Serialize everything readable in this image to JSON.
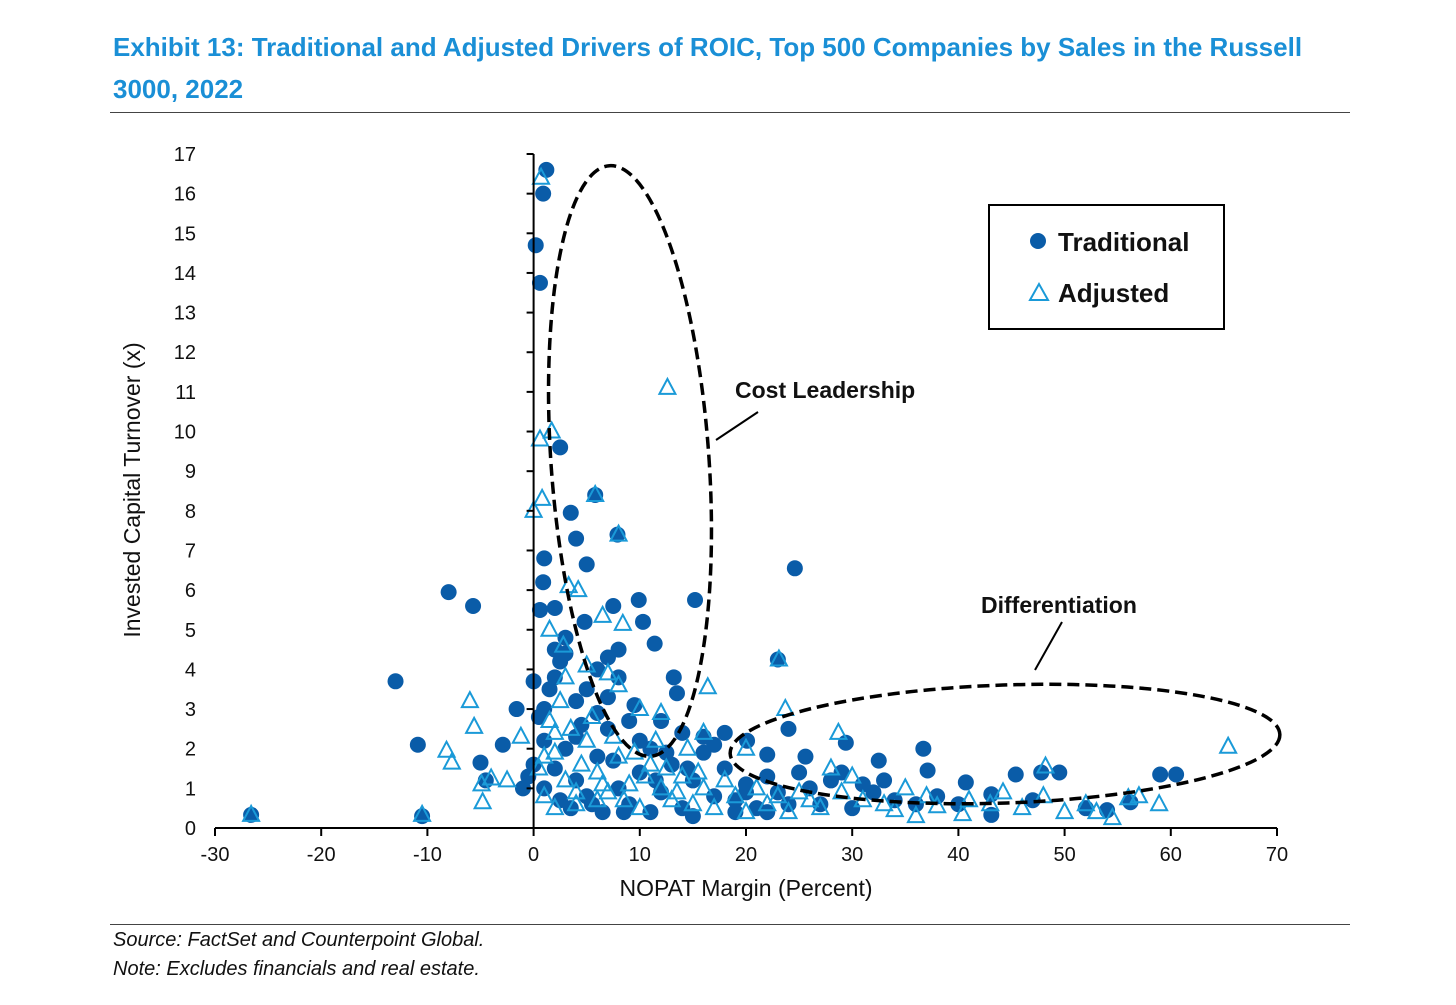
{
  "header": {
    "title": "Exhibit 13: Traditional and Adjusted Drivers of ROIC, Top 500 Companies by Sales in the Russell 3000, 2022"
  },
  "footer": {
    "source": "Source: FactSet and Counterpoint Global.",
    "note": "Note: Excludes financials and real estate."
  },
  "colors": {
    "title": "#1a8fd6",
    "traditional": "#0a5ca8",
    "adjusted": "#1a9ad8"
  },
  "chart_data": {
    "type": "scatter",
    "title": "Exhibit 13: Traditional and Adjusted Drivers of ROIC, Top 500 Companies by Sales in the Russell 3000, 2022",
    "xlabel": "NOPAT Margin (Percent)",
    "ylabel": "Invested Capital Turnover (x)",
    "xlim": [
      -30,
      70
    ],
    "ylim": [
      0,
      17
    ],
    "xticks": [
      -30,
      -20,
      -10,
      0,
      10,
      20,
      30,
      40,
      50,
      60,
      70
    ],
    "yticks": [
      0,
      1,
      2,
      3,
      4,
      5,
      6,
      7,
      8,
      9,
      10,
      11,
      12,
      13,
      14,
      15,
      16,
      17
    ],
    "grid": false,
    "legend": {
      "placement": "top-right",
      "entries": [
        "Traditional",
        "Adjusted"
      ]
    },
    "annotations": [
      "Cost Leadership",
      "Differentiation"
    ],
    "series": [
      {
        "name": "Traditional",
        "marker": "circle",
        "points": [
          [
            -26.6,
            0.33
          ],
          [
            -13.0,
            3.7
          ],
          [
            -10.9,
            2.1
          ],
          [
            -10.5,
            0.3
          ],
          [
            -8.0,
            5.95
          ],
          [
            -5.7,
            5.6
          ],
          [
            1.2,
            16.6
          ],
          [
            0.9,
            16.0
          ],
          [
            0.2,
            14.7
          ],
          [
            0.6,
            13.75
          ],
          [
            2.5,
            9.6
          ],
          [
            5.8,
            8.4
          ],
          [
            3.5,
            7.95
          ],
          [
            7.9,
            7.4
          ],
          [
            4.0,
            7.3
          ],
          [
            5.0,
            6.65
          ],
          [
            1.0,
            6.8
          ],
          [
            0.9,
            6.2
          ],
          [
            24.6,
            6.55
          ],
          [
            9.9,
            5.75
          ],
          [
            15.2,
            5.75
          ],
          [
            7.5,
            5.6
          ],
          [
            0.6,
            5.5
          ],
          [
            2.0,
            5.55
          ],
          [
            10.3,
            5.2
          ],
          [
            4.8,
            5.2
          ],
          [
            11.4,
            4.65
          ],
          [
            23.0,
            4.25
          ],
          [
            13.2,
            3.8
          ],
          [
            -1.6,
            3.0
          ],
          [
            -2.9,
            2.1
          ],
          [
            -5.0,
            1.65
          ],
          [
            36.7,
            2.0
          ],
          [
            29.4,
            2.15
          ],
          [
            24.0,
            2.5
          ],
          [
            47.8,
            1.4
          ],
          [
            49.5,
            1.4
          ],
          [
            59.0,
            1.35
          ],
          [
            60.5,
            1.35
          ],
          [
            45.4,
            1.35
          ],
          [
            40.7,
            1.15
          ],
          [
            32.5,
            1.7
          ],
          [
            37.1,
            1.45
          ],
          [
            43.1,
            0.85
          ],
          [
            56.2,
            0.65
          ],
          [
            43.1,
            0.33
          ],
          [
            20.1,
            2.2
          ],
          [
            22.0,
            1.85
          ],
          [
            25.6,
            1.8
          ],
          [
            -4.5,
            1.2
          ],
          [
            -1.0,
            1.0
          ],
          [
            -0.5,
            1.3
          ],
          [
            0,
            1.6
          ],
          [
            0,
            3.7
          ],
          [
            1,
            1
          ],
          [
            2,
            1.5
          ],
          [
            3,
            2
          ],
          [
            4,
            1.2
          ],
          [
            5,
            0.8
          ],
          [
            6,
            1.8
          ],
          [
            7,
            2.5
          ],
          [
            8,
            1
          ],
          [
            9,
            0.6
          ],
          [
            10,
            1.4
          ],
          [
            11,
            2
          ],
          [
            12,
            0.9
          ],
          [
            13,
            1.6
          ],
          [
            14,
            0.5
          ],
          [
            15,
            1.2
          ],
          [
            16,
            2.3
          ],
          [
            17,
            0.8
          ],
          [
            18,
            1.5
          ],
          [
            19,
            0.7
          ],
          [
            20,
            1.1
          ],
          [
            21,
            0.5
          ],
          [
            22,
            1.3
          ],
          [
            23,
            0.9
          ],
          [
            24,
            0.6
          ],
          [
            0.5,
            2.8
          ],
          [
            1.5,
            3.5
          ],
          [
            2.5,
            4.2
          ],
          [
            3,
            4.8
          ],
          [
            2,
            3.8
          ],
          [
            4,
            3.2
          ],
          [
            5,
            3.5
          ],
          [
            6,
            2.9
          ],
          [
            7,
            3.3
          ],
          [
            8,
            3.8
          ],
          [
            9,
            2.7
          ],
          [
            10,
            2.2
          ],
          [
            12,
            2.7
          ],
          [
            14,
            2.4
          ],
          [
            16,
            1.9
          ],
          [
            18,
            2.4
          ],
          [
            3.5,
            0.5
          ],
          [
            6.5,
            0.4
          ],
          [
            11,
            0.4
          ],
          [
            15,
            0.3
          ],
          [
            19,
            0.4
          ],
          [
            26,
            1.0
          ],
          [
            27,
            0.6
          ],
          [
            28,
            1.2
          ],
          [
            30,
            0.5
          ],
          [
            32,
            0.9
          ],
          [
            34,
            0.7
          ],
          [
            36,
            0.6
          ],
          [
            38,
            0.8
          ],
          [
            25,
            1.4
          ],
          [
            29,
            1.4
          ],
          [
            31,
            1.1
          ],
          [
            33,
            1.2
          ],
          [
            1,
            2.2
          ],
          [
            4.5,
            2.6
          ],
          [
            7.5,
            1.7
          ],
          [
            9.5,
            3.1
          ],
          [
            13.5,
            3.4
          ],
          [
            11.5,
            1.2
          ],
          [
            2.5,
            0.7
          ],
          [
            5.5,
            0.6
          ],
          [
            8.5,
            0.4
          ],
          [
            17,
            2.1
          ],
          [
            20,
            0.9
          ],
          [
            22,
            0.4
          ],
          [
            3,
            4.4
          ],
          [
            2,
            4.5
          ],
          [
            6,
            4.0
          ],
          [
            7,
            4.3
          ],
          [
            8,
            4.5
          ],
          [
            1,
            3.0
          ],
          [
            4,
            2.3
          ],
          [
            12.5,
            1.9
          ],
          [
            14.5,
            1.5
          ],
          [
            40,
            0.6
          ],
          [
            47,
            0.7
          ],
          [
            52,
            0.5
          ],
          [
            54,
            0.45
          ]
        ]
      },
      {
        "name": "Adjusted",
        "marker": "triangle",
        "points": [
          [
            -26.6,
            0.33
          ],
          [
            -10.5,
            0.33
          ],
          [
            -8.2,
            1.95
          ],
          [
            -7.7,
            1.65
          ],
          [
            -6.0,
            3.2
          ],
          [
            -5.6,
            2.55
          ],
          [
            -4.8,
            0.65
          ],
          [
            -4.9,
            1.1
          ],
          [
            -4,
            1.25
          ],
          [
            -2.5,
            1.2
          ],
          [
            -1.2,
            2.3
          ],
          [
            0.7,
            16.4
          ],
          [
            12.6,
            11.1
          ],
          [
            1.7,
            10.0
          ],
          [
            0.6,
            9.8
          ],
          [
            0.8,
            8.3
          ],
          [
            0.0,
            8.0
          ],
          [
            5.8,
            8.4
          ],
          [
            8.0,
            7.4
          ],
          [
            6.5,
            5.35
          ],
          [
            8.4,
            5.15
          ],
          [
            16.4,
            3.55
          ],
          [
            23.1,
            4.25
          ],
          [
            23.7,
            3.0
          ],
          [
            28.7,
            2.4
          ],
          [
            65.4,
            2.05
          ],
          [
            58.9,
            0.6
          ],
          [
            54.5,
            0.25
          ],
          [
            48.2,
            1.55
          ],
          [
            44.2,
            0.9
          ],
          [
            40.4,
            0.35
          ],
          [
            3.3,
            6.1
          ],
          [
            4.2,
            6.0
          ],
          [
            1.5,
            5.0
          ],
          [
            2.8,
            4.6
          ],
          [
            10,
            3.0
          ],
          [
            12,
            2.9
          ],
          [
            8,
            3.6
          ],
          [
            16,
            2.4
          ],
          [
            20,
            2.0
          ],
          [
            30,
            1.3
          ],
          [
            35,
            1.0
          ],
          [
            37,
            0.8
          ],
          [
            46,
            0.5
          ],
          [
            50,
            0.4
          ],
          [
            52,
            0.6
          ],
          [
            56,
            0.75
          ],
          [
            33,
            0.6
          ],
          [
            29,
            0.9
          ],
          [
            26,
            0.7
          ],
          [
            0.5,
            1.5
          ],
          [
            1,
            0.8
          ],
          [
            2,
            1.9
          ],
          [
            3,
            1.2
          ],
          [
            4,
            0.6
          ],
          [
            5,
            2.2
          ],
          [
            6,
            1.4
          ],
          [
            7,
            0.9
          ],
          [
            8,
            1.8
          ],
          [
            9,
            1.1
          ],
          [
            10,
            0.5
          ],
          [
            11,
            1.6
          ],
          [
            12,
            1.0
          ],
          [
            13,
            0.7
          ],
          [
            14,
            1.3
          ],
          [
            15,
            0.6
          ],
          [
            16,
            1.0
          ],
          [
            17,
            0.5
          ],
          [
            18,
            1.2
          ],
          [
            19,
            0.8
          ],
          [
            20,
            0.4
          ],
          [
            21,
            1.0
          ],
          [
            22,
            0.6
          ],
          [
            23,
            0.8
          ],
          [
            24,
            0.4
          ],
          [
            25,
            0.9
          ],
          [
            27,
            0.5
          ],
          [
            31,
            0.7
          ],
          [
            34,
            0.45
          ],
          [
            36,
            0.3
          ],
          [
            1.5,
            2.7
          ],
          [
            2.5,
            3.2
          ],
          [
            3.5,
            2.5
          ],
          [
            4.5,
            1.6
          ],
          [
            5.5,
            2.8
          ],
          [
            6.5,
            1.1
          ],
          [
            7.5,
            2.3
          ],
          [
            8.5,
            0.7
          ],
          [
            9.5,
            1.9
          ],
          [
            10.5,
            1.3
          ],
          [
            11.5,
            2.2
          ],
          [
            12.5,
            1.5
          ],
          [
            13.5,
            0.9
          ],
          [
            14.5,
            2.0
          ],
          [
            15.5,
            1.4
          ],
          [
            2,
            0.5
          ],
          [
            4,
            0.9
          ],
          [
            6,
            0.7
          ],
          [
            3,
            3.8
          ],
          [
            5,
            4.1
          ],
          [
            7,
            3.9
          ],
          [
            2,
            2.4
          ],
          [
            1,
            1.8
          ],
          [
            28,
            1.5
          ],
          [
            38,
            0.55
          ],
          [
            41,
            0.7
          ],
          [
            43,
            0.6
          ],
          [
            48,
            0.8
          ],
          [
            53,
            0.4
          ],
          [
            57,
            0.8
          ]
        ]
      }
    ]
  }
}
